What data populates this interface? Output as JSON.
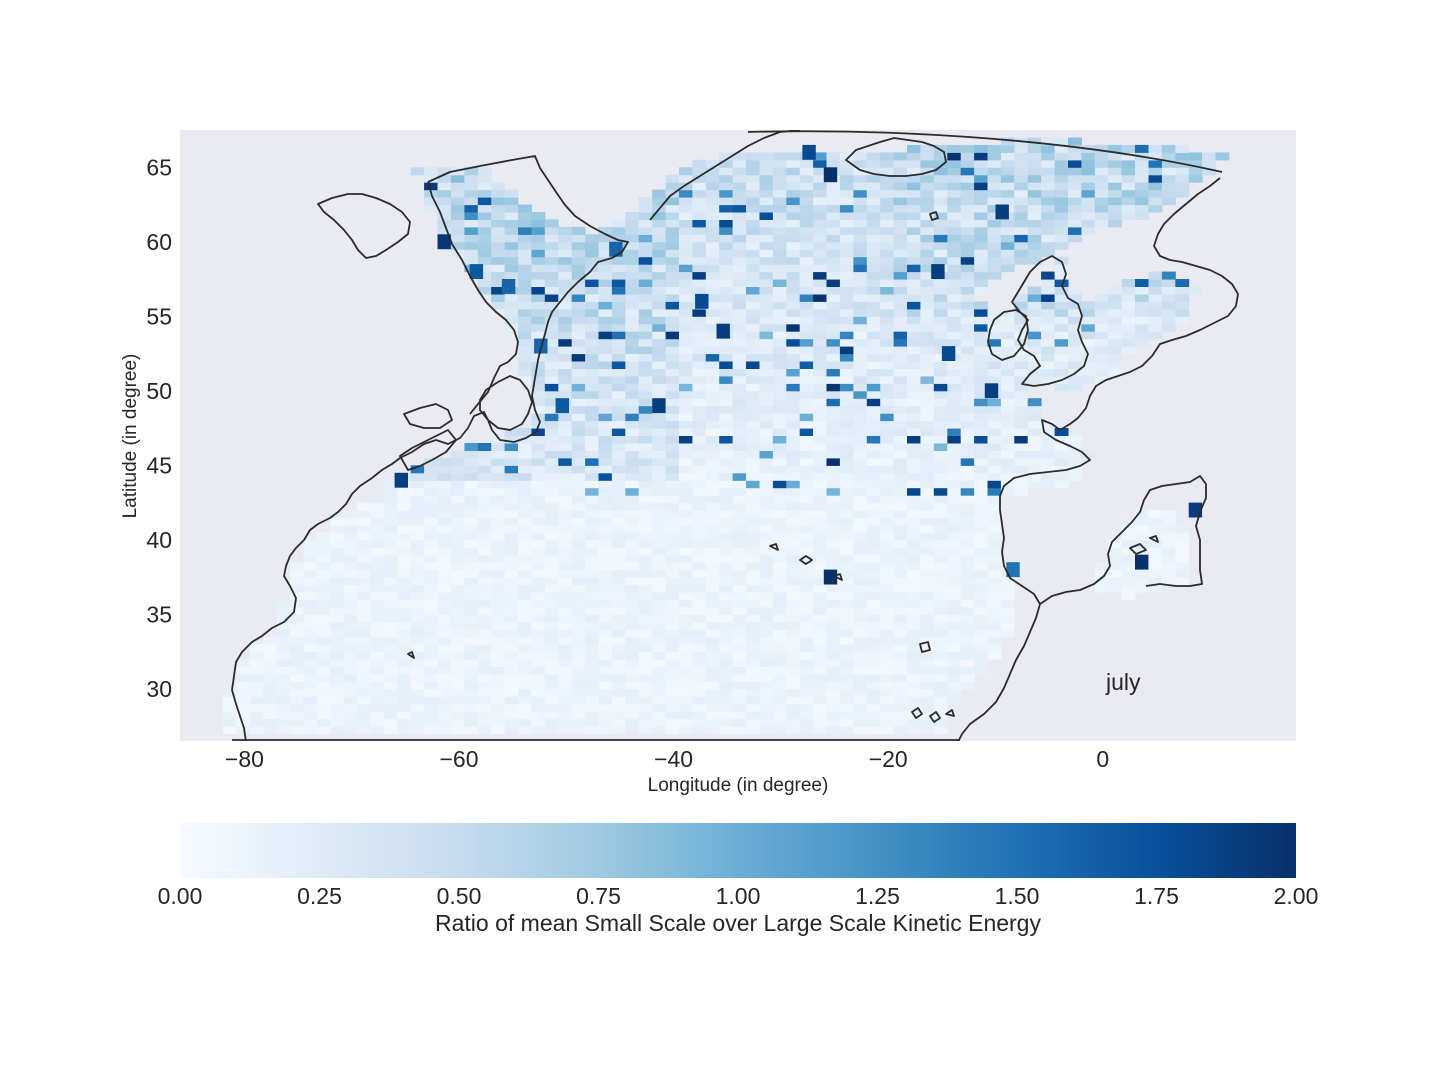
{
  "chart_data": {
    "type": "heatmap",
    "title": "",
    "xlabel": "Longitude (in degree)",
    "ylabel": "Latitude (in degree)",
    "annotation": "july",
    "xlim": [
      -86,
      18
    ],
    "ylim": [
      26.5,
      67.5
    ],
    "xticks": [
      -80,
      -60,
      -40,
      -20,
      0
    ],
    "xtick_labels": [
      "−80",
      "−60",
      "−40",
      "−20",
      "0"
    ],
    "yticks": [
      30,
      35,
      40,
      45,
      50,
      55,
      60,
      65
    ],
    "ytick_labels": [
      "30",
      "35",
      "40",
      "45",
      "50",
      "55",
      "60",
      "65"
    ],
    "grid": false,
    "colormap": "Blues",
    "colorbar": {
      "label": "Ratio of mean Small Scale over Large Scale Kinetic Energy",
      "range": [
        0,
        2
      ],
      "ticks": [
        0.0,
        0.25,
        0.5,
        0.75,
        1.0,
        1.25,
        1.5,
        1.75,
        2.0
      ],
      "tick_labels": [
        "0.00",
        "0.25",
        "0.50",
        "0.75",
        "1.00",
        "1.25",
        "1.50",
        "1.75",
        "2.00"
      ],
      "placement": "bottom"
    },
    "background_color": "#eaeaf2",
    "coast_color": "#2b2b2b",
    "high_ratio_cells": [
      {
        "lon": -62,
        "lat": 59.5,
        "value": 1.95
      },
      {
        "lon": -59,
        "lat": 57.5,
        "value": 1.7
      },
      {
        "lon": -56,
        "lat": 56.5,
        "value": 1.6
      },
      {
        "lon": -53,
        "lat": 52.5,
        "value": 1.6
      },
      {
        "lon": -51,
        "lat": 48.5,
        "value": 1.7
      },
      {
        "lon": -46,
        "lat": 59.0,
        "value": 1.6
      },
      {
        "lon": -42,
        "lat": 48.5,
        "value": 1.9
      },
      {
        "lon": -38,
        "lat": 55.5,
        "value": 1.8
      },
      {
        "lon": -36,
        "lat": 53.5,
        "value": 1.9
      },
      {
        "lon": -28,
        "lat": 65.5,
        "value": 1.8
      },
      {
        "lon": -26,
        "lat": 64.0,
        "value": 2.0
      },
      {
        "lon": -26,
        "lat": 37.0,
        "value": 2.0
      },
      {
        "lon": -16,
        "lat": 57.5,
        "value": 1.9
      },
      {
        "lon": -15,
        "lat": 52.0,
        "value": 1.8
      },
      {
        "lon": -11,
        "lat": 49.5,
        "value": 1.9
      },
      {
        "lon": -10,
        "lat": 61.5,
        "value": 1.9
      },
      {
        "lon": -9,
        "lat": 37.5,
        "value": 1.5
      },
      {
        "lon": -66,
        "lat": 43.5,
        "value": 1.9
      },
      {
        "lon": 3,
        "lat": 38.0,
        "value": 2.0
      },
      {
        "lon": 8,
        "lat": 41.5,
        "value": 1.9
      }
    ]
  }
}
